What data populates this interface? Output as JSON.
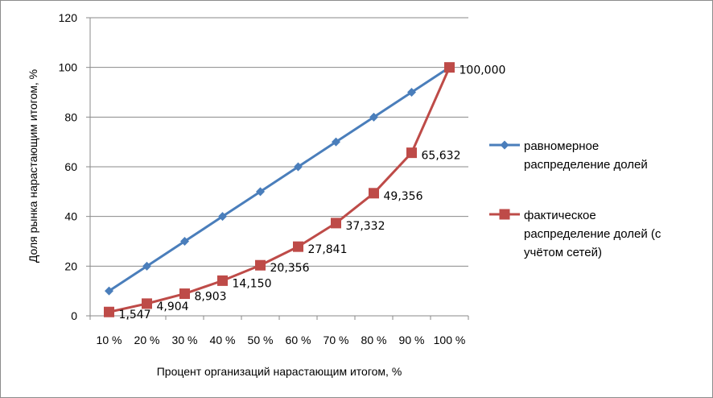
{
  "chart_data": {
    "type": "line",
    "title": "",
    "xlabel": "Процент организаций нарастающим итогом, %",
    "ylabel": "Доля рынка нарастающим итогом, %",
    "categories": [
      "10 %",
      "20 %",
      "30 %",
      "40 %",
      "50 %",
      "60 %",
      "70 %",
      "80 %",
      "90 %",
      "100 %"
    ],
    "ylim": [
      0,
      120
    ],
    "yticks": [
      "0",
      "20",
      "40",
      "60",
      "80",
      "100",
      "120"
    ],
    "grid": "horizontal",
    "legend_position": "right",
    "series": [
      {
        "name_lines": [
          "равномерное",
          "распределение долей"
        ],
        "name": "равномерное распределение долей",
        "color": "#4a7ebb",
        "marker": "diamond",
        "values": [
          10,
          20,
          30,
          40,
          50,
          60,
          70,
          80,
          90,
          100
        ],
        "labels": []
      },
      {
        "name_lines": [
          "фактическое",
          "распределение долей (с",
          "учётом сетей)"
        ],
        "name": "фактическое распределение долей (с учётом сетей)",
        "color": "#be4b48",
        "marker": "square",
        "values": [
          1.547,
          4.904,
          8.903,
          14.15,
          20.356,
          27.841,
          37.332,
          49.356,
          65.632,
          100.0
        ],
        "labels": [
          "1,547",
          "4,904",
          "8,903",
          "14,150",
          "20,356",
          "27,841",
          "37,332",
          "49,356",
          "65,632",
          "100,000"
        ]
      }
    ]
  }
}
